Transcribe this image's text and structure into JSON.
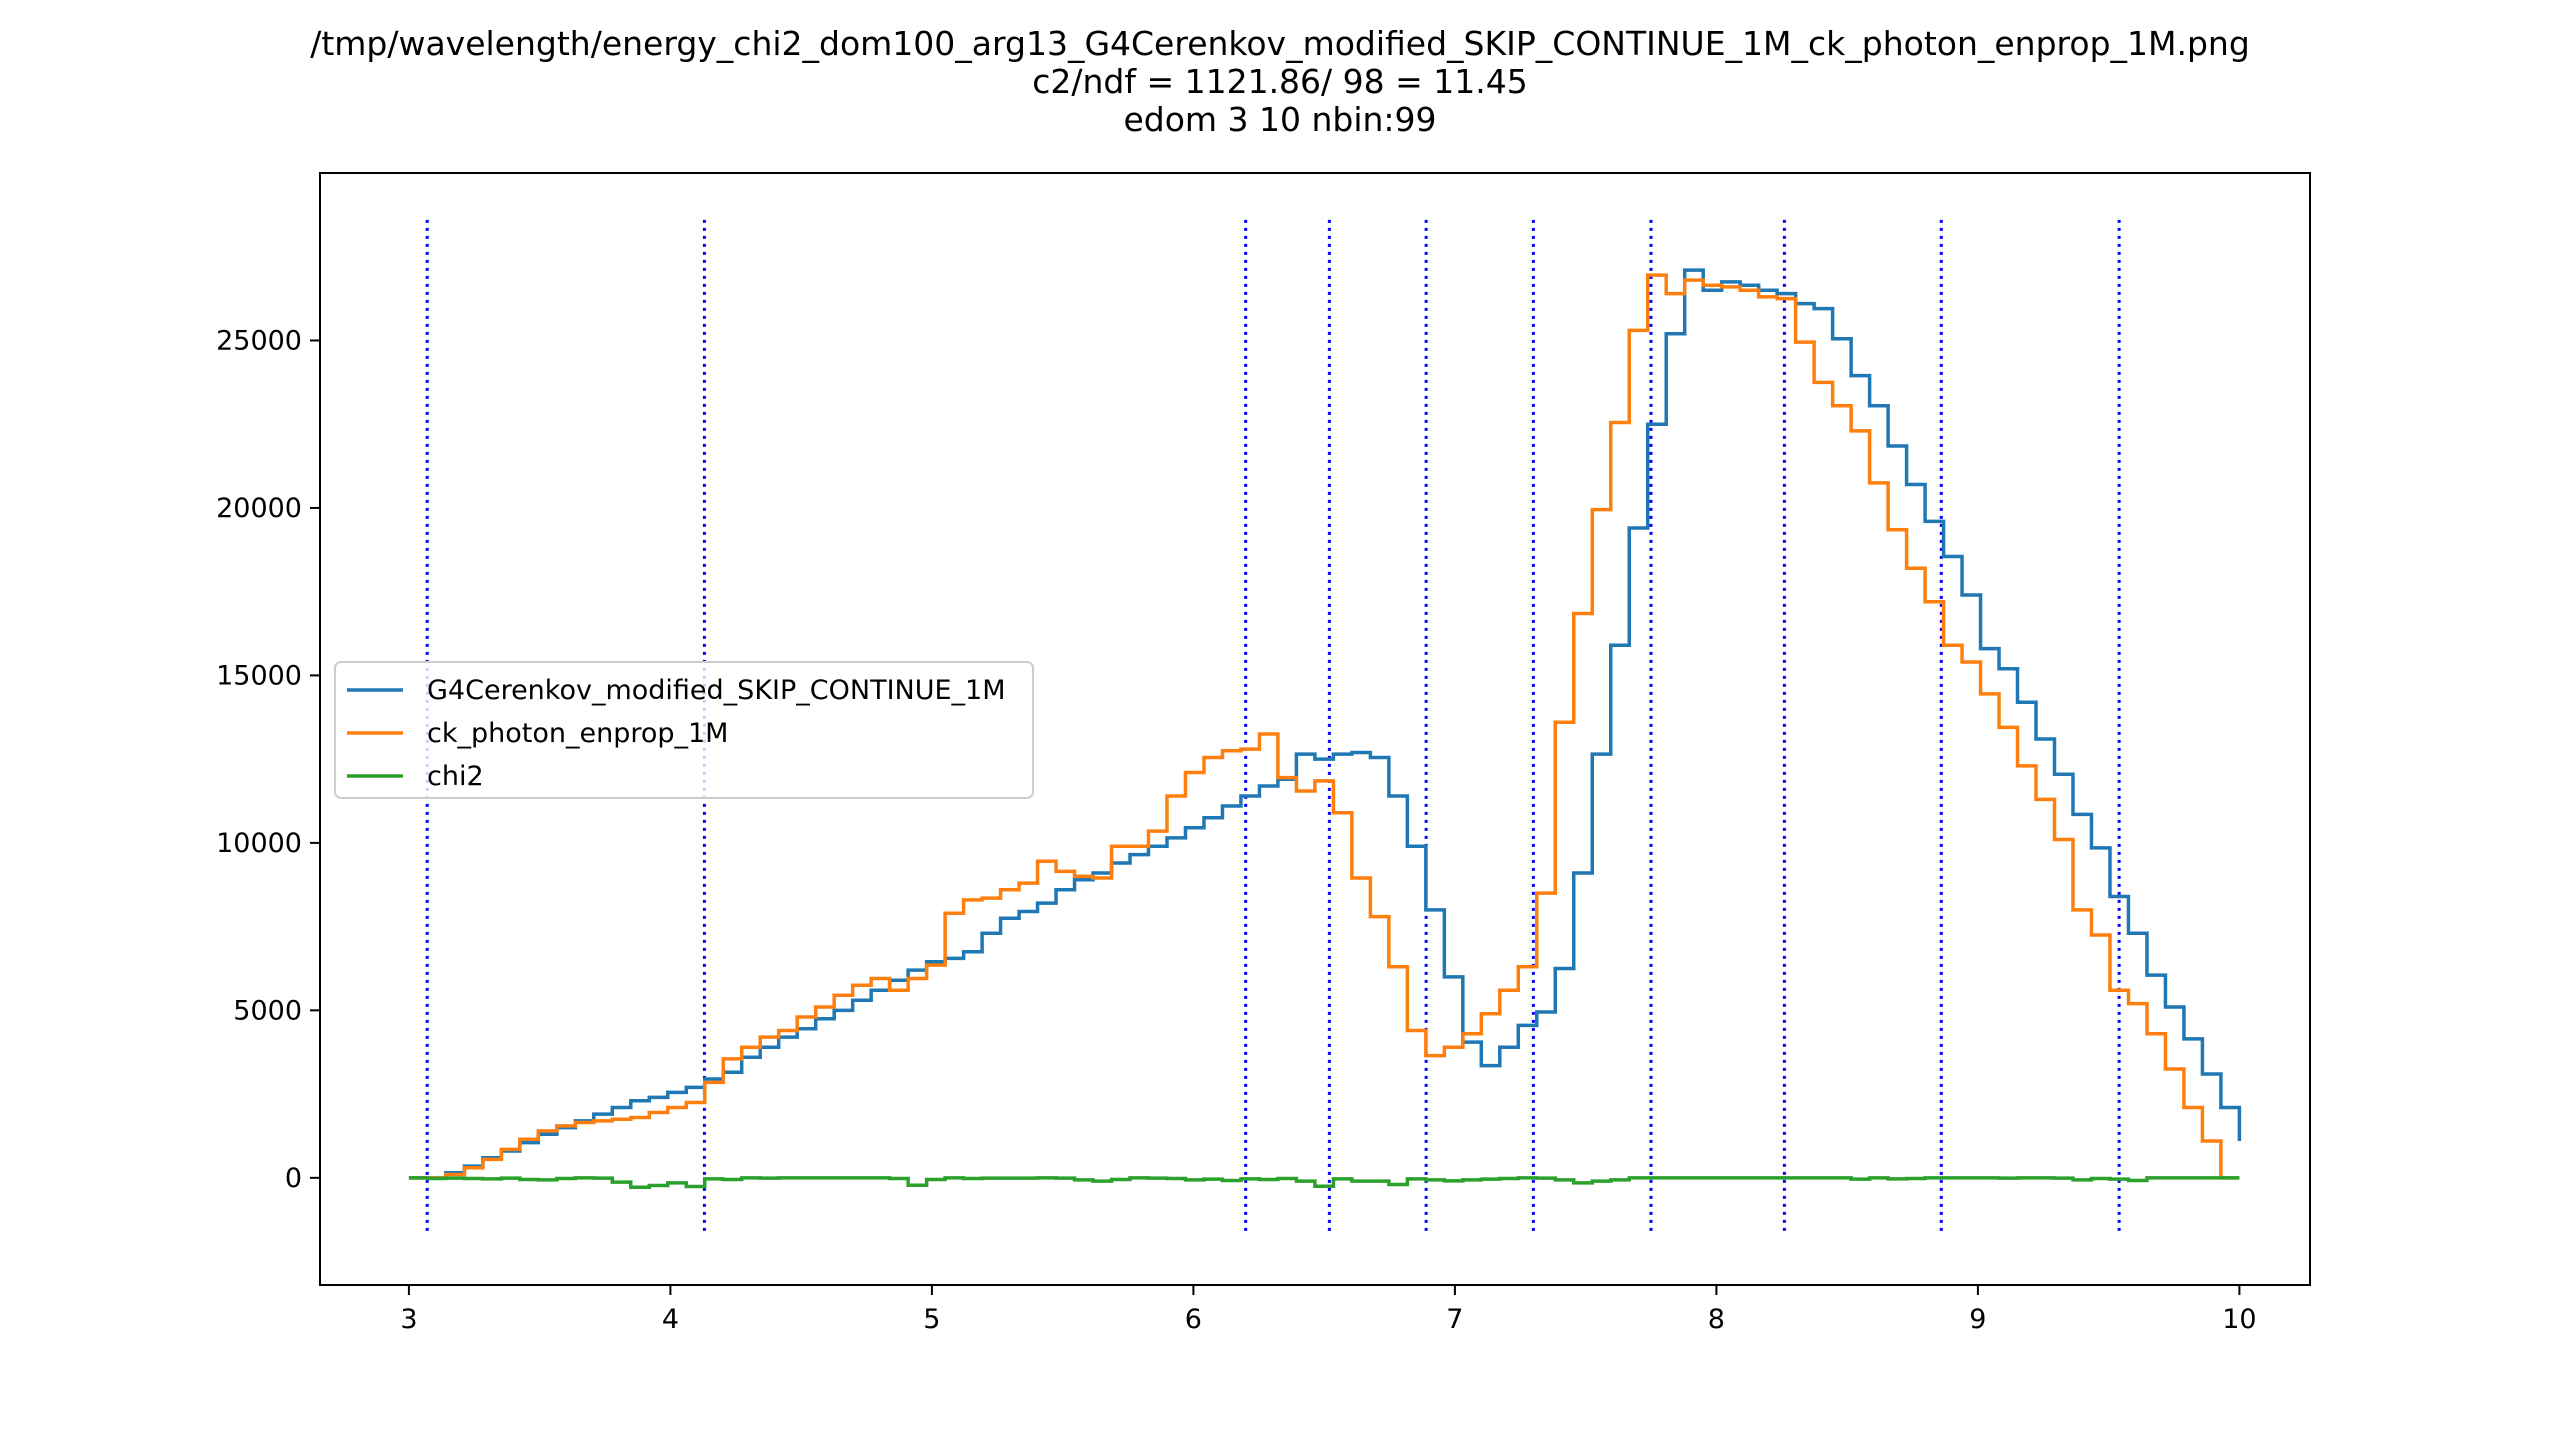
{
  "chart_data": {
    "type": "line",
    "title": [
      "/tmp/wavelength/energy_chi2_dom100_arg13_G4Cerenkov_modified_SKIP_CONTINUE_1M_ck_photon_enprop_1M.png",
      "c2/ndf = 1121.86/ 98 = 11.45",
      "edom 3 10 nbin:99"
    ],
    "xlabel": "",
    "ylabel": "",
    "xlim": [
      2.66,
      10.27
    ],
    "ylim": [
      -3200,
      30000
    ],
    "xticks": [
      3,
      4,
      5,
      6,
      7,
      8,
      9,
      10
    ],
    "xtick_labels": [
      "3",
      "4",
      "5",
      "6",
      "7",
      "8",
      "9",
      "10"
    ],
    "yticks": [
      0,
      5000,
      10000,
      15000,
      20000,
      25000
    ],
    "ytick_labels": [
      "0",
      "5000",
      "10000",
      "15000",
      "20000",
      "25000"
    ],
    "grid": false,
    "legend_position": "center-left",
    "bin_edges": [
      3.0,
      3.0707,
      3.1414,
      3.2121,
      3.2828,
      3.3535,
      3.4242,
      3.4949,
      3.5657,
      3.6364,
      3.7071,
      3.7778,
      3.8485,
      3.9192,
      3.9899,
      4.0606,
      4.1313,
      4.202,
      4.2727,
      4.3434,
      4.4141,
      4.4848,
      4.5556,
      4.6263,
      4.697,
      4.7677,
      4.8384,
      4.9091,
      4.9798,
      5.0505,
      5.1212,
      5.1919,
      5.2626,
      5.3333,
      5.404,
      5.4747,
      5.5455,
      5.6162,
      5.6869,
      5.7576,
      5.8283,
      5.899,
      5.9697,
      6.0404,
      6.1111,
      6.1818,
      6.2525,
      6.3232,
      6.3939,
      6.4646,
      6.5354,
      6.6061,
      6.6768,
      6.7475,
      6.8182,
      6.8889,
      6.9596,
      7.0303,
      7.101,
      7.1717,
      7.2424,
      7.3131,
      7.3838,
      7.4545,
      7.5253,
      7.596,
      7.6667,
      7.7374,
      7.8081,
      7.8788,
      7.9495,
      8.0202,
      8.0909,
      8.1616,
      8.2323,
      8.303,
      8.3737,
      8.4444,
      8.5152,
      8.5859,
      8.6566,
      8.7273,
      8.798,
      8.8687,
      8.9394,
      9.0101,
      9.0808,
      9.1515,
      9.2222,
      9.2929,
      9.3636,
      9.4343,
      9.5051,
      9.5758,
      9.6465,
      9.7172,
      9.7879,
      9.8586,
      9.9293,
      10.0
    ],
    "series": [
      {
        "name": "G4Cerenkov_modified_SKIP_CONTINUE_1M",
        "color": "#1f77b4",
        "values": [
          0,
          0,
          150,
          350,
          600,
          800,
          1050,
          1300,
          1500,
          1700,
          1900,
          2100,
          2300,
          2400,
          2550,
          2700,
          2950,
          3150,
          3600,
          3900,
          4200,
          4450,
          4750,
          5000,
          5300,
          5600,
          5900,
          6200,
          6450,
          6550,
          6750,
          7300,
          7750,
          7950,
          8200,
          8600,
          8900,
          9100,
          9400,
          9650,
          9900,
          10150,
          10450,
          10750,
          11100,
          11400,
          11700,
          11900,
          12650,
          12500,
          12650,
          12700,
          12550,
          11400,
          9900,
          8000,
          6000,
          4050,
          3350,
          3900,
          4550,
          4950,
          6250,
          9100,
          12650,
          15900,
          19400,
          22500,
          25200,
          27100,
          26500,
          26750,
          26650,
          26500,
          26400,
          26100,
          25950,
          25050,
          23950,
          23050,
          21850,
          20700,
          19600,
          18550,
          17400,
          15800,
          15200,
          14200,
          13100,
          12050,
          10850,
          9850,
          8400,
          7300,
          6050,
          5100,
          4150,
          3100,
          2100,
          1100
        ]
      },
      {
        "name": "ck_photon_enprop_1M",
        "color": "#ff7f0e",
        "values": [
          0,
          0,
          100,
          300,
          550,
          850,
          1150,
          1400,
          1550,
          1650,
          1700,
          1750,
          1800,
          1950,
          2100,
          2250,
          2850,
          3550,
          3900,
          4200,
          4400,
          4800,
          5100,
          5450,
          5750,
          5950,
          5600,
          5950,
          6350,
          7900,
          8300,
          8350,
          8600,
          8800,
          9450,
          9150,
          9000,
          8950,
          9900,
          9900,
          10350,
          11400,
          12100,
          12550,
          12750,
          12800,
          13250,
          11950,
          11550,
          11850,
          10900,
          8950,
          7800,
          6300,
          4400,
          3650,
          3900,
          4300,
          4900,
          5600,
          6300,
          8500,
          13600,
          16850,
          19950,
          22550,
          25300,
          26950,
          26400,
          26800,
          26650,
          26600,
          26500,
          26300,
          26250,
          24950,
          23750,
          23050,
          22300,
          20750,
          19350,
          18200,
          17200,
          15900,
          15400,
          14450,
          13450,
          12300,
          11300,
          10100,
          8000,
          7250,
          5600,
          5200,
          4300,
          3250,
          2100,
          1100,
          0,
          0
        ]
      },
      {
        "name": "chi2",
        "color": "#2ca02c",
        "values": [
          0,
          -20,
          -10,
          -20,
          -30,
          -10,
          -50,
          -60,
          -20,
          0,
          -10,
          -130,
          -280,
          -230,
          -150,
          -260,
          -30,
          -50,
          0,
          -10,
          0,
          0,
          0,
          0,
          0,
          0,
          -20,
          -220,
          -50,
          0,
          -20,
          -10,
          -10,
          -10,
          0,
          -10,
          -60,
          -100,
          -50,
          0,
          -10,
          -20,
          -60,
          -40,
          -80,
          -30,
          -50,
          -20,
          -100,
          -250,
          -30,
          -100,
          -100,
          -200,
          -30,
          -60,
          -90,
          -60,
          -40,
          -20,
          0,
          -10,
          -60,
          -150,
          -100,
          -60,
          0,
          0,
          0,
          0,
          0,
          0,
          0,
          0,
          0,
          0,
          0,
          0,
          -40,
          0,
          -30,
          -20,
          0,
          0,
          0,
          0,
          -10,
          0,
          0,
          -10,
          -60,
          -20,
          -40,
          -80,
          0,
          0,
          0,
          0,
          0,
          0
        ]
      }
    ],
    "vlines": [
      3.07,
      4.13,
      6.2,
      6.52,
      6.89,
      7.3,
      7.75,
      8.26,
      8.86,
      9.54
    ],
    "vline_color": "#0000ff",
    "vline_range": [
      -1700,
      28600
    ]
  }
}
